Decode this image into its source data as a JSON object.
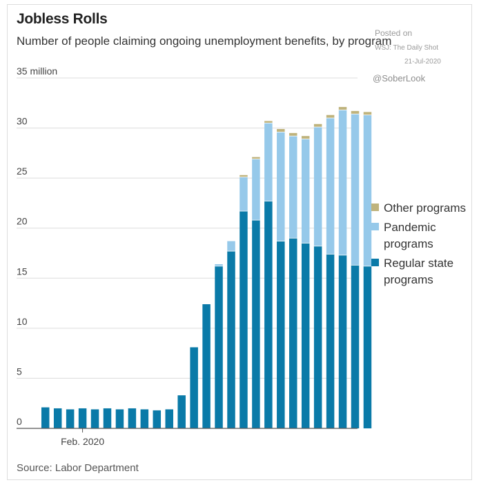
{
  "header": {
    "title": "Jobless Rolls",
    "subtitle": "Number of people claiming ongoing unemployment benefits, by program"
  },
  "watermark": {
    "posted_on": "Posted on",
    "blog": "WSJ: The Daily Shot",
    "date": "21-Jul-2020",
    "handle": "@SoberLook"
  },
  "source": "Source: Labor Department",
  "colors": {
    "regular": "#0a7aa8",
    "pandemic": "#96c9ea",
    "other": "#bfb37c",
    "grid": "#dcdcdc",
    "axis": "#555555"
  },
  "chart_data": {
    "type": "bar",
    "stacked": true,
    "title": "Jobless Rolls",
    "subtitle": "Number of people claiming ongoing unemployment benefits, by program",
    "ylabel": "",
    "xlabel": "",
    "ylim": [
      0,
      35
    ],
    "yticks": [
      {
        "value": 0,
        "label": "0"
      },
      {
        "value": 5,
        "label": "5"
      },
      {
        "value": 10,
        "label": "10"
      },
      {
        "value": 15,
        "label": "15"
      },
      {
        "value": 20,
        "label": "20"
      },
      {
        "value": 25,
        "label": "25"
      },
      {
        "value": 30,
        "label": "30"
      },
      {
        "value": 35,
        "label": "35 million"
      }
    ],
    "xtick": {
      "label": "Feb. 2020",
      "category_index": 3
    },
    "grid": true,
    "legend_position": "right",
    "categories": [
      "",
      "",
      "",
      "",
      "",
      "",
      "",
      "",
      "",
      "",
      "",
      "",
      "",
      "",
      "",
      "",
      "",
      "",
      "",
      "",
      "",
      "",
      "",
      "",
      "",
      "",
      ""
    ],
    "series": [
      {
        "name": "Regular state programs",
        "color": "#0a7aa8",
        "values": [
          2.1,
          2.0,
          1.9,
          2.0,
          1.9,
          2.0,
          1.9,
          2.0,
          1.9,
          1.8,
          1.9,
          3.3,
          8.1,
          12.4,
          16.2,
          17.7,
          21.7,
          20.8,
          22.7,
          18.7,
          19.0,
          18.5,
          18.2,
          17.4,
          17.3,
          16.3,
          16.2
        ]
      },
      {
        "name": "Pandemic programs",
        "color": "#96c9ea",
        "values": [
          0,
          0,
          0,
          0,
          0,
          0,
          0,
          0,
          0,
          0,
          0,
          0,
          0,
          0,
          0.2,
          1.0,
          3.4,
          6.1,
          7.8,
          10.9,
          10.2,
          10.4,
          11.9,
          13.6,
          14.5,
          15.1,
          15.1
        ]
      },
      {
        "name": "Other programs",
        "color": "#bfb37c",
        "values": [
          0,
          0,
          0,
          0,
          0,
          0,
          0,
          0,
          0,
          0,
          0,
          0,
          0,
          0,
          0,
          0,
          0.2,
          0.2,
          0.2,
          0.3,
          0.3,
          0.3,
          0.3,
          0.3,
          0.3,
          0.3,
          0.3
        ]
      }
    ],
    "legend": [
      {
        "key": "other",
        "label": "Other programs",
        "color": "#bfb37c"
      },
      {
        "key": "pandemic",
        "label": "Pandemic programs",
        "color": "#96c9ea"
      },
      {
        "key": "regular",
        "label": "Regular state programs",
        "color": "#0a7aa8"
      }
    ]
  }
}
